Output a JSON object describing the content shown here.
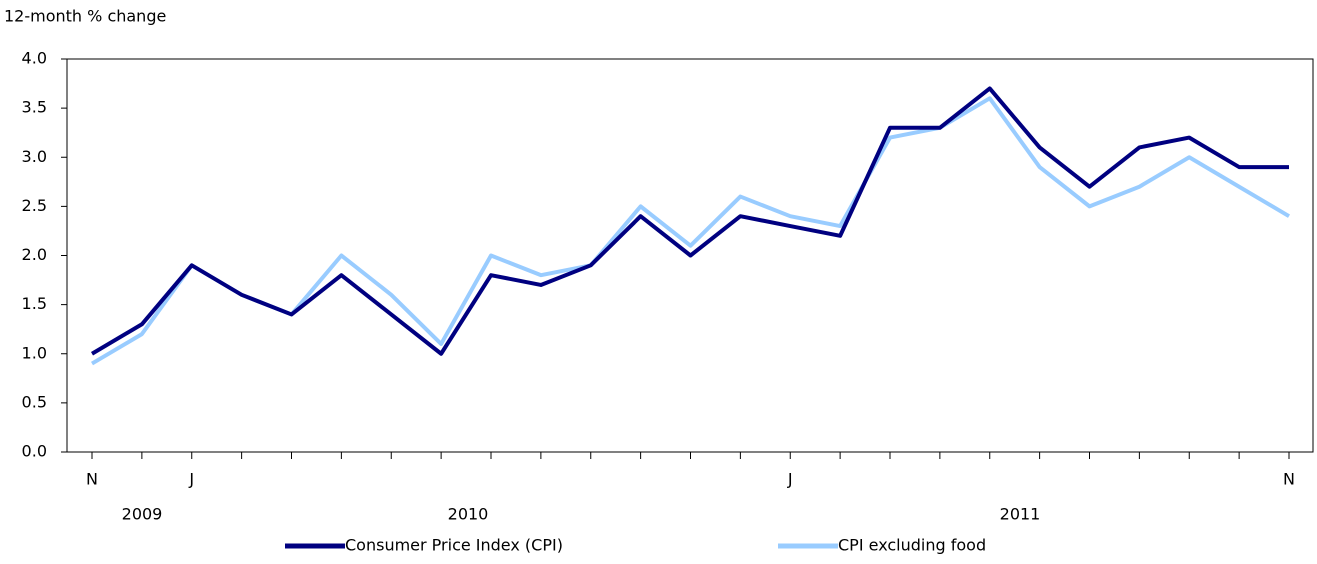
{
  "chart_data": {
    "type": "line",
    "y_axis_label": "12-month % change",
    "categories": [
      "N",
      null,
      "J",
      null,
      null,
      null,
      null,
      null,
      null,
      null,
      null,
      null,
      null,
      null,
      "J",
      null,
      null,
      null,
      null,
      null,
      null,
      null,
      null,
      null,
      "N"
    ],
    "year_labels": [
      "2009",
      "2010",
      "2011"
    ],
    "series": [
      {
        "name": "Consumer Price Index (CPI)",
        "color": "#000080",
        "values": [
          1.0,
          1.3,
          1.9,
          1.6,
          1.4,
          1.8,
          1.4,
          1.0,
          1.8,
          1.7,
          1.9,
          2.4,
          2.0,
          2.4,
          2.3,
          2.2,
          3.3,
          3.3,
          3.7,
          3.1,
          2.7,
          3.1,
          3.2,
          2.9,
          2.9
        ]
      },
      {
        "name": "CPI excluding food",
        "color": "#99ccff",
        "values": [
          0.9,
          1.2,
          1.9,
          1.6,
          1.4,
          2.0,
          1.6,
          1.1,
          2.0,
          1.8,
          1.9,
          2.5,
          2.1,
          2.6,
          2.4,
          2.3,
          3.2,
          3.3,
          3.6,
          2.9,
          2.5,
          2.7,
          3.0,
          2.7,
          2.4
        ]
      }
    ],
    "ylim": [
      0,
      4
    ],
    "yticks": [
      {
        "value": 0,
        "label": "0.0"
      },
      {
        "value": 0.5,
        "label": "0.5"
      },
      {
        "value": 1,
        "label": "1.0"
      },
      {
        "value": 1.5,
        "label": "1.5"
      },
      {
        "value": 2,
        "label": "2.0"
      },
      {
        "value": 2.5,
        "label": "2.5"
      },
      {
        "value": 3,
        "label": "3.0"
      },
      {
        "value": 3.5,
        "label": "3.5"
      },
      {
        "value": 4,
        "label": "4.0"
      }
    ],
    "legend": "bottom"
  }
}
